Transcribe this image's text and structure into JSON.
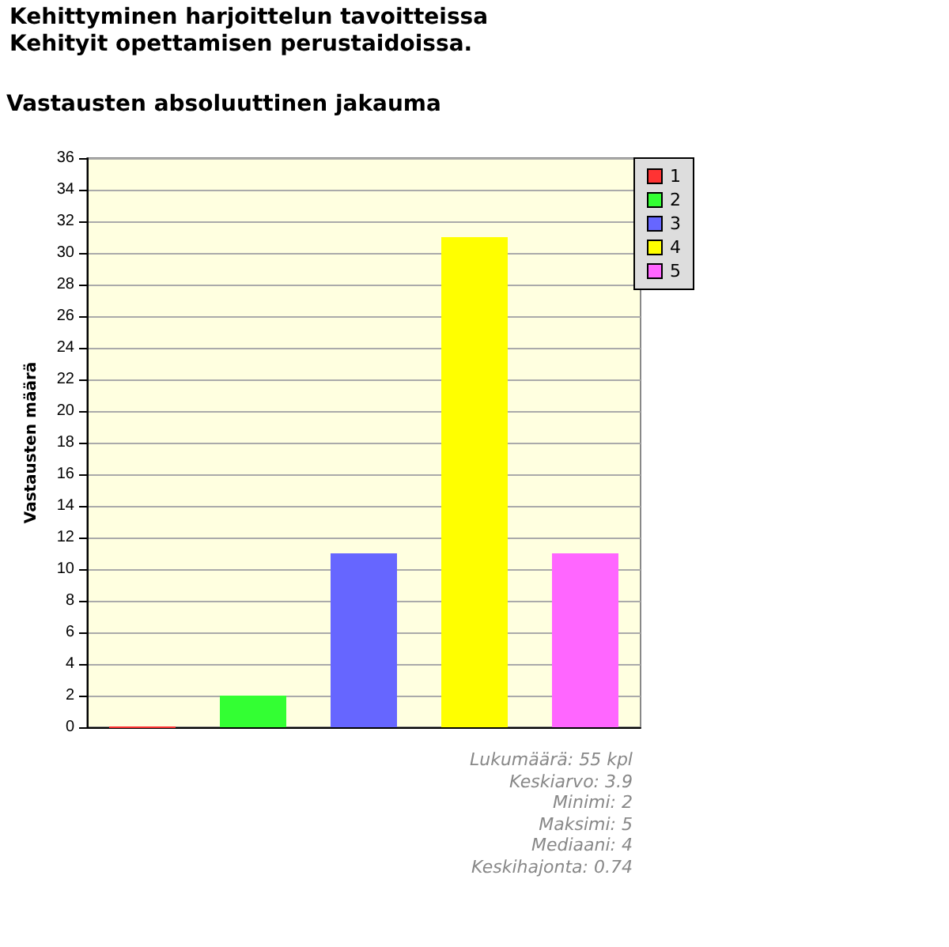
{
  "chart_data": {
    "type": "bar",
    "title": "Kehittyminen harjoittelun tavoitteissa\nKehityit opettamisen perustaidoissa.",
    "subtitle": "Vastausten absoluuttinen jakauma",
    "ylabel": "Vastausten määrä",
    "categories": [
      null,
      null,
      null,
      null,
      null
    ],
    "series": [
      {
        "name": "1",
        "color": "#ff3333",
        "values": [
          0,
          null,
          null,
          null,
          null
        ]
      },
      {
        "name": "2",
        "color": "#33ff33",
        "values": [
          null,
          2,
          null,
          null,
          null
        ]
      },
      {
        "name": "3",
        "color": "#6666ff",
        "values": [
          null,
          null,
          11,
          null,
          null
        ]
      },
      {
        "name": "4",
        "color": "#ffff00",
        "values": [
          null,
          null,
          null,
          31,
          null
        ]
      },
      {
        "name": "5",
        "color": "#ff66ff",
        "values": [
          null,
          null,
          null,
          null,
          11
        ]
      }
    ],
    "ylim": [
      0,
      36
    ],
    "yticks": [
      0,
      2,
      4,
      6,
      8,
      10,
      12,
      14,
      16,
      18,
      20,
      22,
      24,
      26,
      28,
      30,
      32,
      34,
      36
    ],
    "grid": "y",
    "legend": "top right",
    "annotations": [
      "Lukumäärä: 55 kpl",
      "Keskiarvo: 3.9",
      "Minimi: 2",
      "Maksimi: 5",
      "Mediaani: 4",
      "Keskihajonta: 0.74"
    ]
  }
}
